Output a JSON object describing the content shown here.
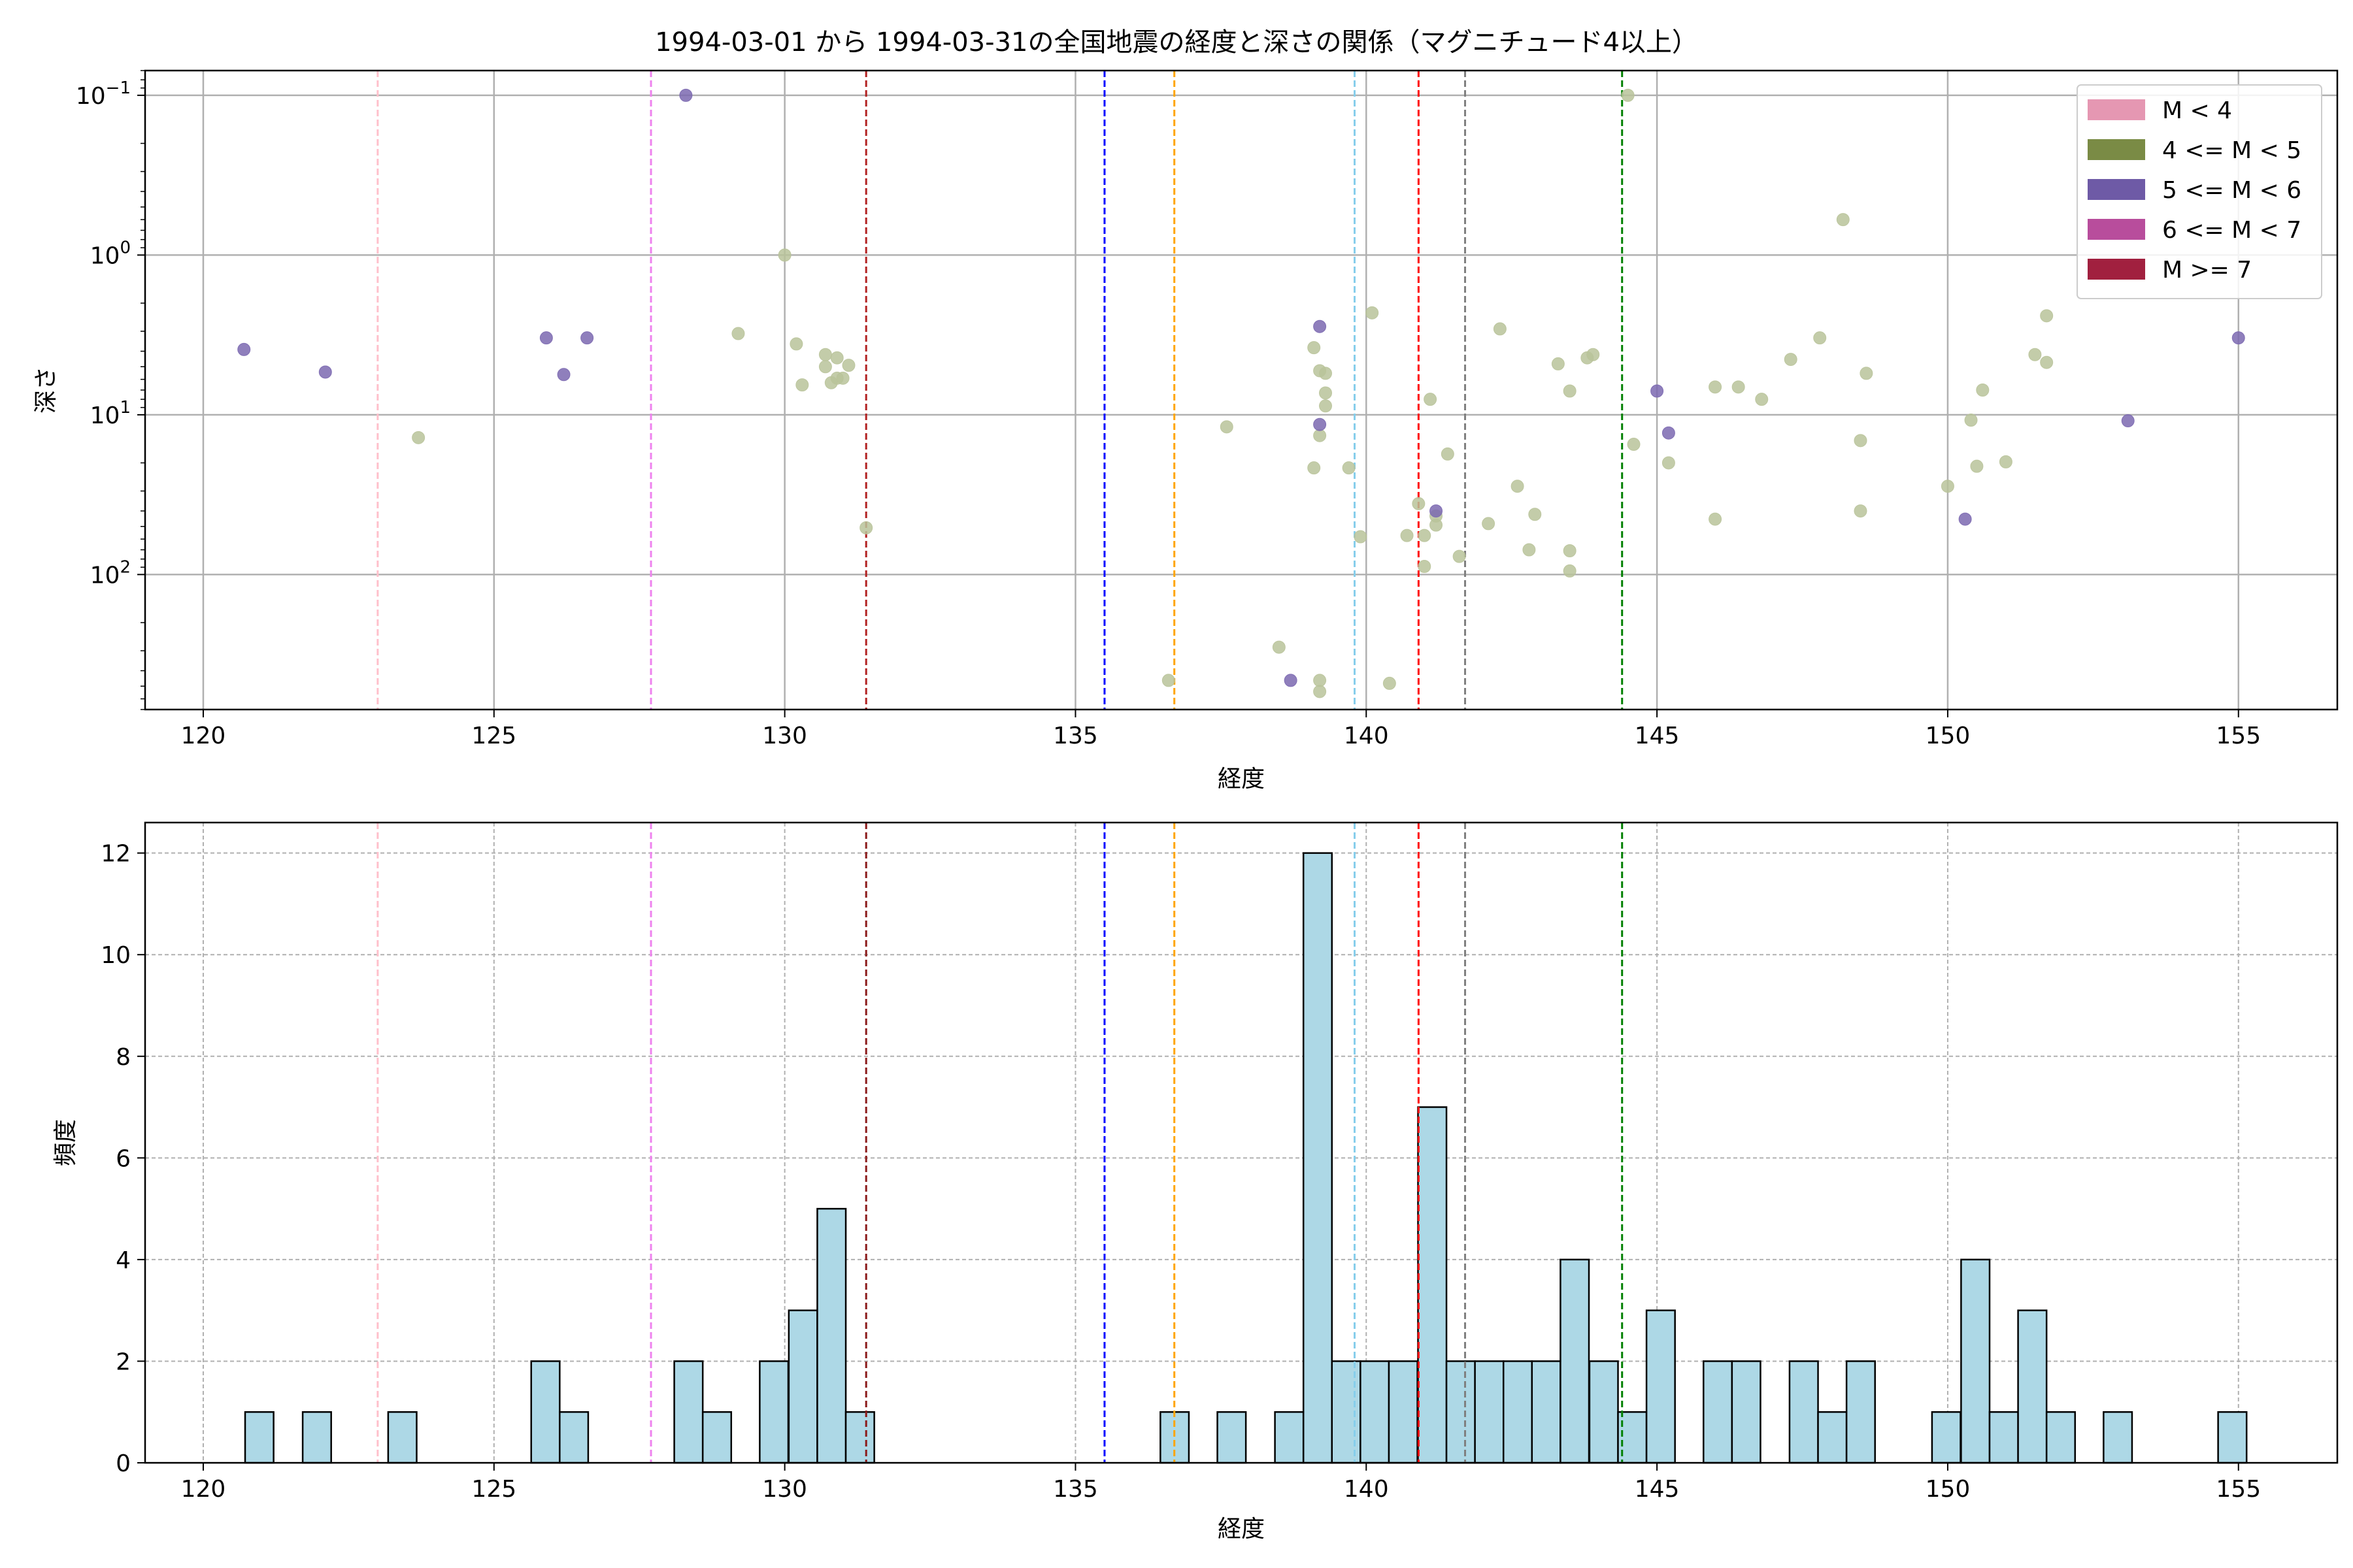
{
  "title": "1994-03-01 から 1994-03-31の全国地震の経度と深さの関係（マグニチュード4以上）",
  "chart_data": [
    {
      "type": "scatter",
      "xlabel": "経度",
      "ylabel": "深さ",
      "xlim": [
        119,
        156.7
      ],
      "x_ticks": [
        120,
        125,
        130,
        135,
        140,
        145,
        150,
        155
      ],
      "y_scale": "log",
      "y_inverted": true,
      "ylim": [
        0.07,
        700
      ],
      "y_ticks": [
        {
          "value": 0.1,
          "label_base": "10",
          "label_exp": "−1"
        },
        {
          "value": 1,
          "label_base": "10",
          "label_exp": "0"
        },
        {
          "value": 10,
          "label_base": "10",
          "label_exp": "1"
        },
        {
          "value": 100,
          "label_base": "10",
          "label_exp": "2"
        }
      ],
      "grid": true,
      "legend_position": "top-right",
      "legend": [
        {
          "label": "M < 4",
          "color": "#e597b2"
        },
        {
          "label": "4 <= M < 5",
          "color": "#7a8b45"
        },
        {
          "label": "5 <= M < 6",
          "color": "#6e5aa6"
        },
        {
          "label": "6 <= M < 7",
          "color": "#b84d9c"
        },
        {
          "label": "M >= 7",
          "color": "#a1203f"
        }
      ],
      "series": [
        {
          "magnitude_class": "4 <= M < 5",
          "color": "#b9c39a",
          "points": [
            [
              123.7,
              13.9
            ],
            [
              129.2,
              3.1
            ],
            [
              130.0,
              1.0
            ],
            [
              130.2,
              3.6
            ],
            [
              130.3,
              6.5
            ],
            [
              130.7,
              4.2
            ],
            [
              130.7,
              5.0
            ],
            [
              130.9,
              4.4
            ],
            [
              130.8,
              6.3
            ],
            [
              130.9,
              5.9
            ],
            [
              131.0,
              5.9
            ],
            [
              131.1,
              4.9
            ],
            [
              131.4,
              51
            ],
            [
              136.6,
              460
            ],
            [
              137.6,
              11.9
            ],
            [
              138.5,
              285
            ],
            [
              139.1,
              3.8
            ],
            [
              139.2,
              5.3
            ],
            [
              139.3,
              5.5
            ],
            [
              139.3,
              7.3
            ],
            [
              139.3,
              8.8
            ],
            [
              139.2,
              13.5
            ],
            [
              139.1,
              21.5
            ],
            [
              139.2,
              460
            ],
            [
              139.2,
              540
            ],
            [
              139.7,
              21.5
            ],
            [
              139.9,
              58
            ],
            [
              140.1,
              2.3
            ],
            [
              140.4,
              480
            ],
            [
              140.7,
              57
            ],
            [
              140.9,
              36
            ],
            [
              141.0,
              57
            ],
            [
              141.0,
              89
            ],
            [
              141.1,
              8.0
            ],
            [
              141.2,
              43
            ],
            [
              141.2,
              49
            ],
            [
              141.4,
              17.6
            ],
            [
              141.6,
              77
            ],
            [
              142.1,
              48
            ],
            [
              142.3,
              2.9
            ],
            [
              142.6,
              28
            ],
            [
              142.8,
              70
            ],
            [
              142.9,
              42
            ],
            [
              143.3,
              4.8
            ],
            [
              143.5,
              7.1
            ],
            [
              143.5,
              71
            ],
            [
              143.5,
              95
            ],
            [
              143.8,
              4.4
            ],
            [
              143.9,
              4.2
            ],
            [
              144.5,
              0.1
            ],
            [
              144.6,
              15.3
            ],
            [
              145.2,
              20
            ],
            [
              146.0,
              6.7
            ],
            [
              146.0,
              45
            ],
            [
              146.4,
              6.7
            ],
            [
              146.8,
              8.0
            ],
            [
              147.3,
              4.5
            ],
            [
              147.8,
              3.3
            ],
            [
              148.2,
              0.6
            ],
            [
              148.5,
              14.5
            ],
            [
              148.5,
              40
            ],
            [
              148.6,
              5.5
            ],
            [
              150.0,
              28
            ],
            [
              150.4,
              10.8
            ],
            [
              150.5,
              21
            ],
            [
              150.6,
              7.0
            ],
            [
              151.0,
              19.7
            ],
            [
              151.5,
              4.2
            ],
            [
              151.7,
              2.4
            ],
            [
              151.7,
              4.7
            ]
          ]
        },
        {
          "magnitude_class": "5 <= M < 6",
          "color": "#7b68b0",
          "points": [
            [
              120.7,
              3.9
            ],
            [
              122.1,
              5.4
            ],
            [
              125.9,
              3.3
            ],
            [
              126.2,
              5.6
            ],
            [
              126.6,
              3.3
            ],
            [
              128.3,
              0.1
            ],
            [
              138.7,
              460
            ],
            [
              139.2,
              2.8
            ],
            [
              139.2,
              11.5
            ],
            [
              141.2,
              40
            ],
            [
              145.0,
              7.1
            ],
            [
              145.2,
              13.0
            ],
            [
              150.3,
              45
            ],
            [
              153.1,
              10.9
            ],
            [
              155.0,
              3.3
            ]
          ]
        }
      ],
      "reference_lines": [
        {
          "x": 123.0,
          "color": "#ffc0cb"
        },
        {
          "x": 127.7,
          "color": "#ee82ee"
        },
        {
          "x": 131.4,
          "color": "#b22222"
        },
        {
          "x": 135.5,
          "color": "#0000ff"
        },
        {
          "x": 136.7,
          "color": "#ffa500"
        },
        {
          "x": 139.8,
          "color": "#87ceeb"
        },
        {
          "x": 140.9,
          "color": "#ff0000"
        },
        {
          "x": 141.7,
          "color": "#808080"
        },
        {
          "x": 144.4,
          "color": "#008000"
        }
      ]
    },
    {
      "type": "bar",
      "subtype": "histogram",
      "xlabel": "経度",
      "ylabel": "頻度",
      "xlim": [
        119,
        156.7
      ],
      "ylim": [
        0,
        12.6
      ],
      "x_ticks": [
        120,
        125,
        130,
        135,
        140,
        145,
        150,
        155
      ],
      "y_ticks": [
        0,
        2,
        4,
        6,
        8,
        10,
        12
      ],
      "grid": true,
      "bar_color": "#add8e6",
      "bin_width": 0.49,
      "bins": [
        [
          120.72,
          1
        ],
        [
          121.71,
          1
        ],
        [
          123.18,
          1
        ],
        [
          125.64,
          2
        ],
        [
          126.13,
          1
        ],
        [
          128.1,
          2
        ],
        [
          128.59,
          1
        ],
        [
          129.57,
          2
        ],
        [
          130.07,
          3
        ],
        [
          130.56,
          5
        ],
        [
          131.05,
          1
        ],
        [
          136.46,
          1
        ],
        [
          137.44,
          1
        ],
        [
          138.43,
          1
        ],
        [
          138.92,
          12
        ],
        [
          139.41,
          2
        ],
        [
          139.9,
          2
        ],
        [
          140.39,
          2
        ],
        [
          140.89,
          7
        ],
        [
          141.38,
          2
        ],
        [
          141.87,
          2
        ],
        [
          142.36,
          2
        ],
        [
          142.85,
          2
        ],
        [
          143.34,
          4
        ],
        [
          143.84,
          2
        ],
        [
          144.33,
          1
        ],
        [
          144.82,
          3
        ],
        [
          145.8,
          2
        ],
        [
          146.29,
          2
        ],
        [
          147.28,
          2
        ],
        [
          147.77,
          1
        ],
        [
          148.26,
          2
        ],
        [
          149.73,
          1
        ],
        [
          150.23,
          4
        ],
        [
          150.72,
          1
        ],
        [
          151.21,
          3
        ],
        [
          151.7,
          1
        ],
        [
          152.68,
          1
        ],
        [
          154.65,
          1
        ]
      ],
      "reference_lines": [
        {
          "x": 123.0,
          "color": "#ffc0cb"
        },
        {
          "x": 127.7,
          "color": "#ee82ee"
        },
        {
          "x": 131.4,
          "color": "#8b1a1a"
        },
        {
          "x": 135.5,
          "color": "#0000ff"
        },
        {
          "x": 136.7,
          "color": "#ffa500"
        },
        {
          "x": 139.8,
          "color": "#87ceeb"
        },
        {
          "x": 140.9,
          "color": "#ff0000"
        },
        {
          "x": 141.7,
          "color": "#808080"
        },
        {
          "x": 144.4,
          "color": "#008000"
        }
      ]
    }
  ]
}
